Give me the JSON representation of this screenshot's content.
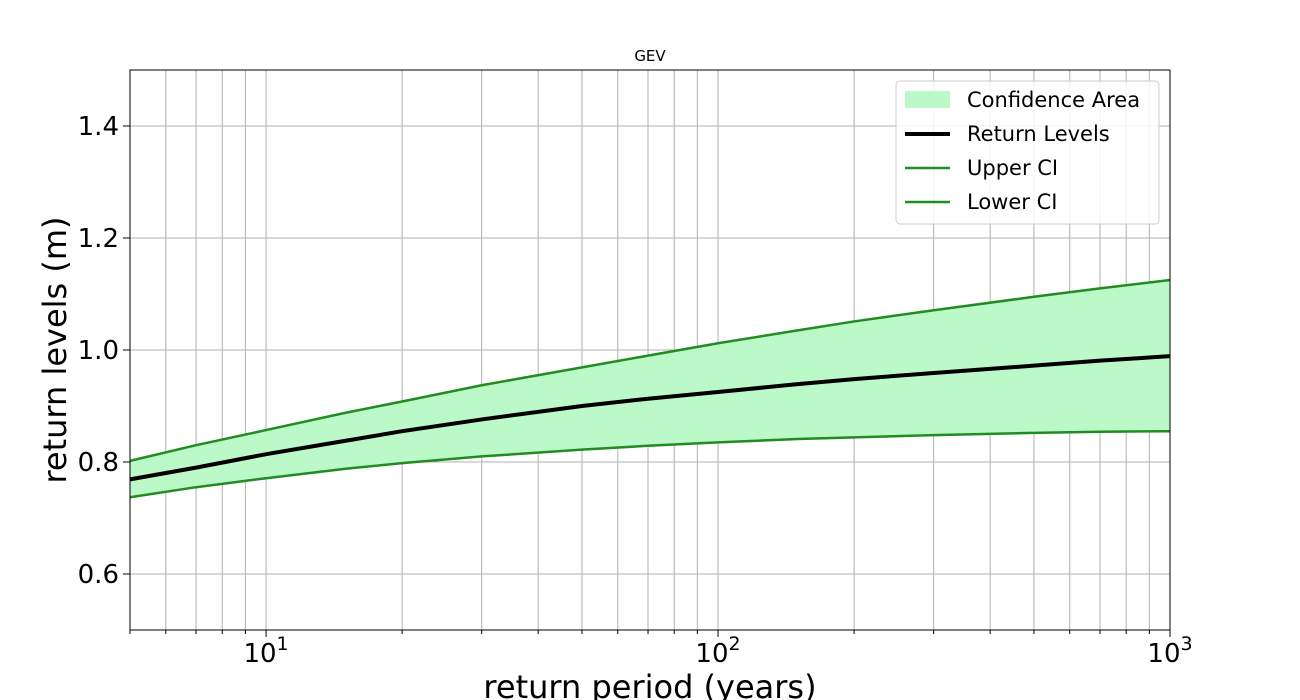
{
  "chart_data": {
    "type": "line",
    "title": "GEV",
    "xlabel": "return period (years)",
    "ylabel": "return levels (m)",
    "xscale": "log",
    "xlim": [
      5,
      1000
    ],
    "ylim": [
      0.5,
      1.5
    ],
    "grid": "on (major and minor)",
    "legend_position": "top-right",
    "x_tick_labels": [
      {
        "base": "10",
        "exp": "1",
        "value": 10
      },
      {
        "base": "10",
        "exp": "2",
        "value": 100
      },
      {
        "base": "10",
        "exp": "3",
        "value": 1000
      }
    ],
    "y_ticks": [
      0.6,
      0.8,
      1.0,
      1.2,
      1.4
    ],
    "y_tick_labels": [
      "0.6",
      "0.8",
      "1.0",
      "1.2",
      "1.4"
    ],
    "x": [
      5,
      7,
      10,
      15,
      20,
      30,
      50,
      70,
      100,
      150,
      200,
      300,
      500,
      700,
      1000
    ],
    "series": [
      {
        "name": "Return Levels",
        "color": "#000000",
        "values": [
          0.769,
          0.79,
          0.814,
          0.838,
          0.855,
          0.876,
          0.9,
          0.913,
          0.925,
          0.939,
          0.948,
          0.959,
          0.972,
          0.981,
          0.989
        ]
      },
      {
        "name": "Upper CI",
        "color": "#228b22",
        "values": [
          0.802,
          0.83,
          0.857,
          0.888,
          0.908,
          0.937,
          0.969,
          0.99,
          1.012,
          1.035,
          1.051,
          1.071,
          1.095,
          1.11,
          1.125
        ]
      },
      {
        "name": "Lower CI",
        "color": "#228b22",
        "values": [
          0.737,
          0.755,
          0.771,
          0.788,
          0.798,
          0.81,
          0.822,
          0.829,
          0.835,
          0.841,
          0.844,
          0.848,
          0.852,
          0.854,
          0.855
        ]
      }
    ],
    "fill": {
      "name": "Confidence Area",
      "color": "#bbf9c9",
      "between": [
        "Lower CI",
        "Upper CI"
      ]
    },
    "legend": [
      "Confidence Area",
      "Return Levels",
      "Upper CI",
      "Lower CI"
    ]
  }
}
